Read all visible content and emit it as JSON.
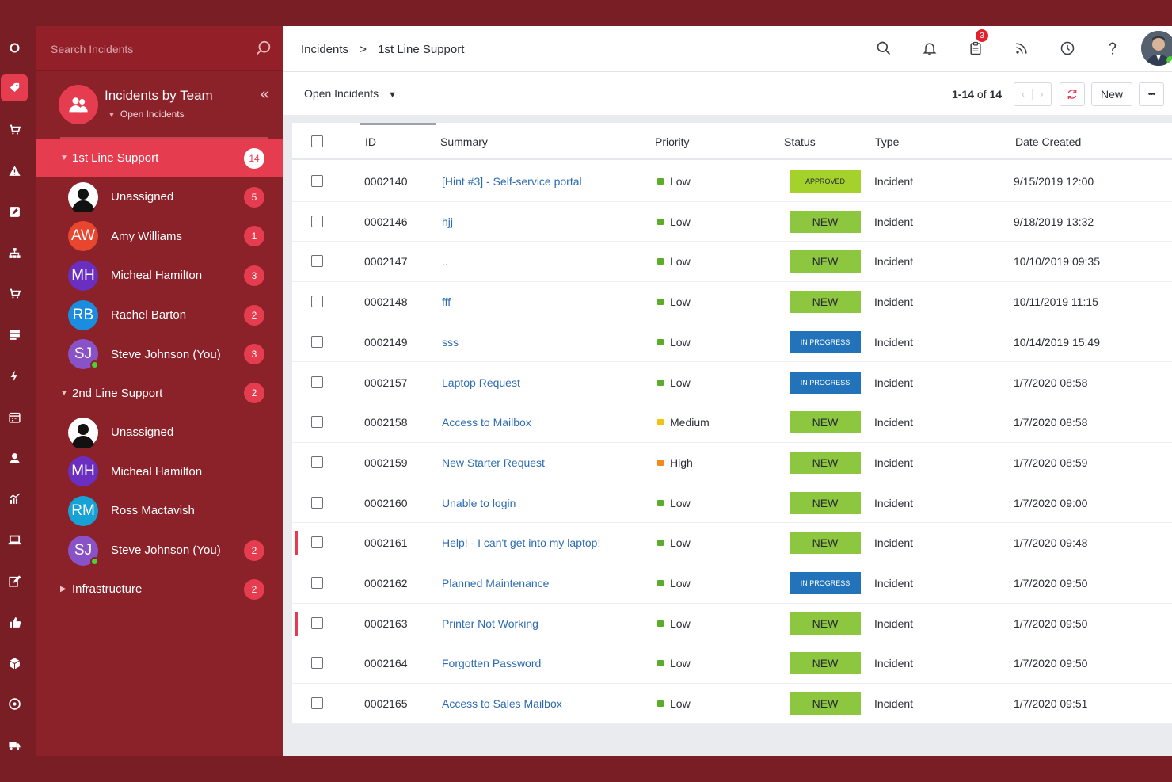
{
  "colors": {
    "brand_dark": "#7a1e26",
    "sidebar_bg": "#8b2129",
    "accent": "#e63c4f",
    "status_new": "#8dc63f",
    "status_approved": "#a4d12a",
    "status_in_progress": "#2273b9",
    "priority_low": "#5aac2a",
    "priority_medium": "#f4c20d",
    "priority_high": "#f28a1e"
  },
  "rail": {
    "icons": [
      "circle-icon",
      "tag-icon",
      "cart-icon",
      "warning-icon",
      "edit-icon",
      "hierarchy-icon",
      "cart-icon",
      "server-icon",
      "bolt-icon",
      "calendar-icon",
      "user-icon",
      "chart-icon",
      "laptop-icon",
      "pen-icon",
      "thumbs-up-icon",
      "cube-icon",
      "disc-icon",
      "truck-icon"
    ]
  },
  "sidebar": {
    "search_placeholder": "Search Incidents",
    "team_title": "Incidents by Team",
    "team_filter": "Open Incidents",
    "groups": [
      {
        "label": "1st Line Support",
        "count": "14",
        "expanded": true,
        "active": true,
        "members": [
          {
            "name": "Unassigned",
            "initials": "",
            "avatar_color": "#ffffff",
            "count": "5",
            "online": false
          },
          {
            "name": "Amy Williams",
            "initials": "AW",
            "avatar_color": "#e8462f",
            "count": "1",
            "online": false
          },
          {
            "name": "Micheal Hamilton",
            "initials": "MH",
            "avatar_color": "#6a2fc0",
            "count": "3",
            "online": false
          },
          {
            "name": "Rachel Barton",
            "initials": "RB",
            "avatar_color": "#1a8de0",
            "count": "2",
            "online": false
          },
          {
            "name": "Steve Johnson (You)",
            "initials": "SJ",
            "avatar_color": "#8a52c7",
            "count": "3",
            "online": true
          }
        ]
      },
      {
        "label": "2nd Line Support",
        "count": "2",
        "expanded": true,
        "active": false,
        "members": [
          {
            "name": "Unassigned",
            "initials": "",
            "avatar_color": "#ffffff",
            "count": "",
            "online": false
          },
          {
            "name": "Micheal Hamilton",
            "initials": "MH",
            "avatar_color": "#6a2fc0",
            "count": "",
            "online": false
          },
          {
            "name": "Ross Mactavish",
            "initials": "RM",
            "avatar_color": "#17a2d6",
            "count": "",
            "online": false
          },
          {
            "name": "Steve Johnson (You)",
            "initials": "SJ",
            "avatar_color": "#8a52c7",
            "count": "2",
            "online": true
          }
        ]
      },
      {
        "label": "Infrastructure",
        "count": "2",
        "expanded": false,
        "active": false,
        "members": []
      }
    ]
  },
  "topbar": {
    "breadcrumb": [
      "Incidents",
      "1st Line Support"
    ],
    "breadcrumb_sep": ">",
    "icons": [
      "search-icon",
      "bell-icon",
      "clipboard-icon",
      "rss-icon",
      "clock-icon",
      "help-icon"
    ],
    "clipboard_badge": "3"
  },
  "subbar": {
    "view": "Open Incidents",
    "pager_range": "1-14",
    "pager_of": "of",
    "pager_total": "14",
    "new_label": "New",
    "more_label": "•••"
  },
  "table": {
    "columns": [
      "ID",
      "Summary",
      "Priority",
      "Status",
      "Type",
      "Date Created"
    ],
    "rows": [
      {
        "id": "0002140",
        "summary": "[Hint #3] - Self-service portal",
        "priority": "Low",
        "status": "APPROVED",
        "type": "Incident",
        "date": "9/15/2019 12:00",
        "flag": false
      },
      {
        "id": "0002146",
        "summary": "hjj",
        "priority": "Low",
        "status": "NEW",
        "type": "Incident",
        "date": "9/18/2019 13:32",
        "flag": false
      },
      {
        "id": "0002147",
        "summary": "..",
        "priority": "Low",
        "status": "NEW",
        "type": "Incident",
        "date": "10/10/2019 09:35",
        "flag": false
      },
      {
        "id": "0002148",
        "summary": "fff",
        "priority": "Low",
        "status": "NEW",
        "type": "Incident",
        "date": "10/11/2019 11:15",
        "flag": false
      },
      {
        "id": "0002149",
        "summary": "sss",
        "priority": "Low",
        "status": "IN PROGRESS",
        "type": "Incident",
        "date": "10/14/2019 15:49",
        "flag": false
      },
      {
        "id": "0002157",
        "summary": "Laptop Request",
        "priority": "Low",
        "status": "IN PROGRESS",
        "type": "Incident",
        "date": "1/7/2020 08:58",
        "flag": false
      },
      {
        "id": "0002158",
        "summary": "Access to Mailbox",
        "priority": "Medium",
        "status": "NEW",
        "type": "Incident",
        "date": "1/7/2020 08:58",
        "flag": false
      },
      {
        "id": "0002159",
        "summary": "New Starter Request",
        "priority": "High",
        "status": "NEW",
        "type": "Incident",
        "date": "1/7/2020 08:59",
        "flag": false
      },
      {
        "id": "0002160",
        "summary": "Unable to login",
        "priority": "Low",
        "status": "NEW",
        "type": "Incident",
        "date": "1/7/2020 09:00",
        "flag": false
      },
      {
        "id": "0002161",
        "summary": "Help! - I can't get into my laptop!",
        "priority": "Low",
        "status": "NEW",
        "type": "Incident",
        "date": "1/7/2020 09:48",
        "flag": true
      },
      {
        "id": "0002162",
        "summary": "Planned Maintenance",
        "priority": "Low",
        "status": "IN PROGRESS",
        "type": "Incident",
        "date": "1/7/2020 09:50",
        "flag": false
      },
      {
        "id": "0002163",
        "summary": "Printer Not Working",
        "priority": "Low",
        "status": "NEW",
        "type": "Incident",
        "date": "1/7/2020 09:50",
        "flag": true
      },
      {
        "id": "0002164",
        "summary": "Forgotten Password",
        "priority": "Low",
        "status": "NEW",
        "type": "Incident",
        "date": "1/7/2020 09:50",
        "flag": false
      },
      {
        "id": "0002165",
        "summary": "Access to Sales Mailbox",
        "priority": "Low",
        "status": "NEW",
        "type": "Incident",
        "date": "1/7/2020 09:51",
        "flag": false
      }
    ]
  }
}
